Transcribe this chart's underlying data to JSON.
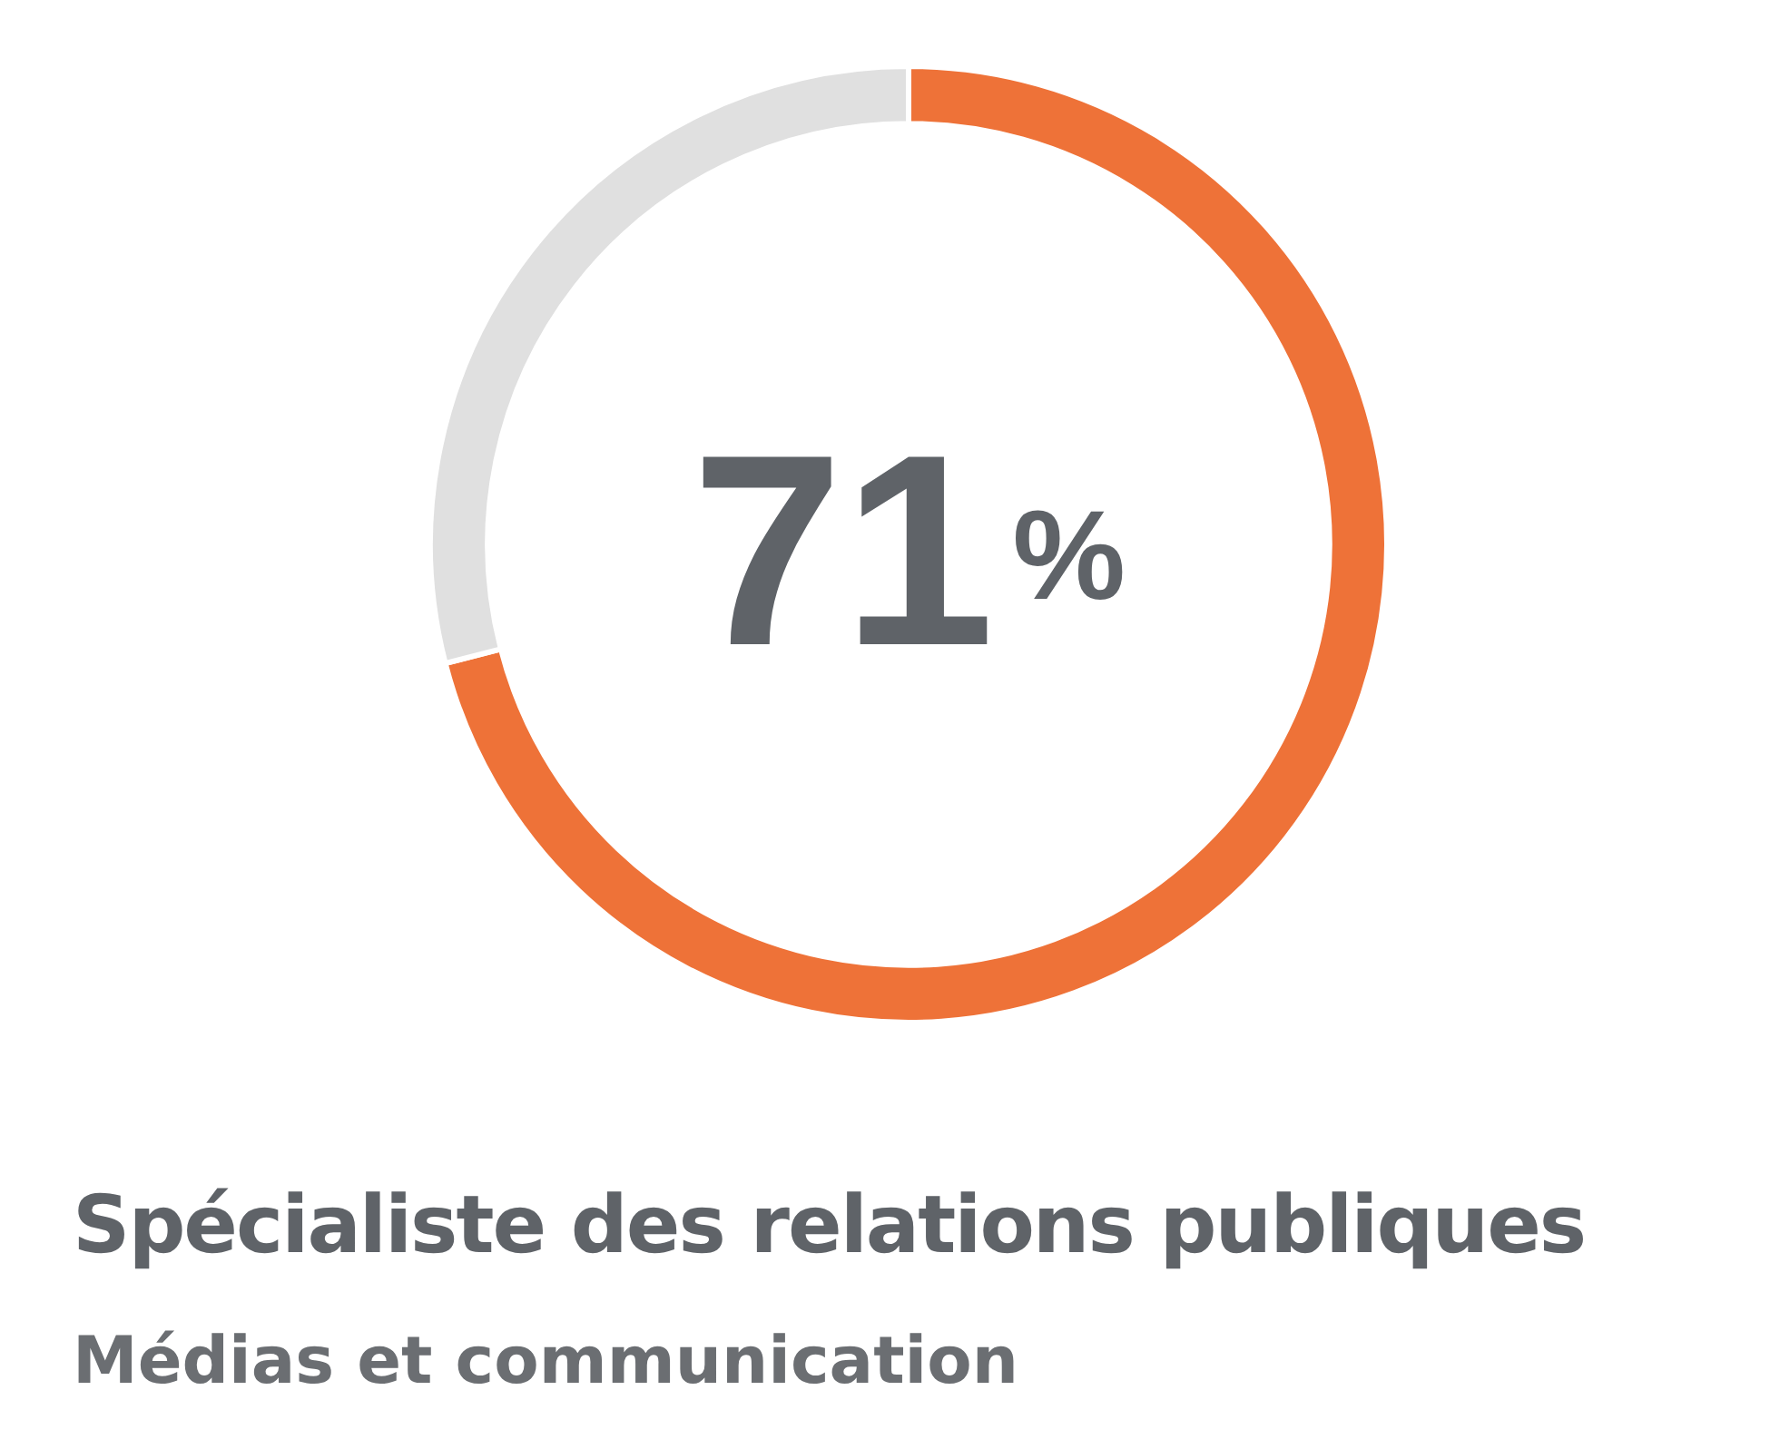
{
  "chart_data": {
    "type": "donut",
    "title": "Spécialiste des relations publiques",
    "subtitle": "Médias et communication",
    "categories": [
      null,
      null
    ],
    "values": [
      71,
      29
    ],
    "colors": [
      "#ee7238",
      "#e0e0e0"
    ],
    "annotations": [
      "71%"
    ]
  }
}
